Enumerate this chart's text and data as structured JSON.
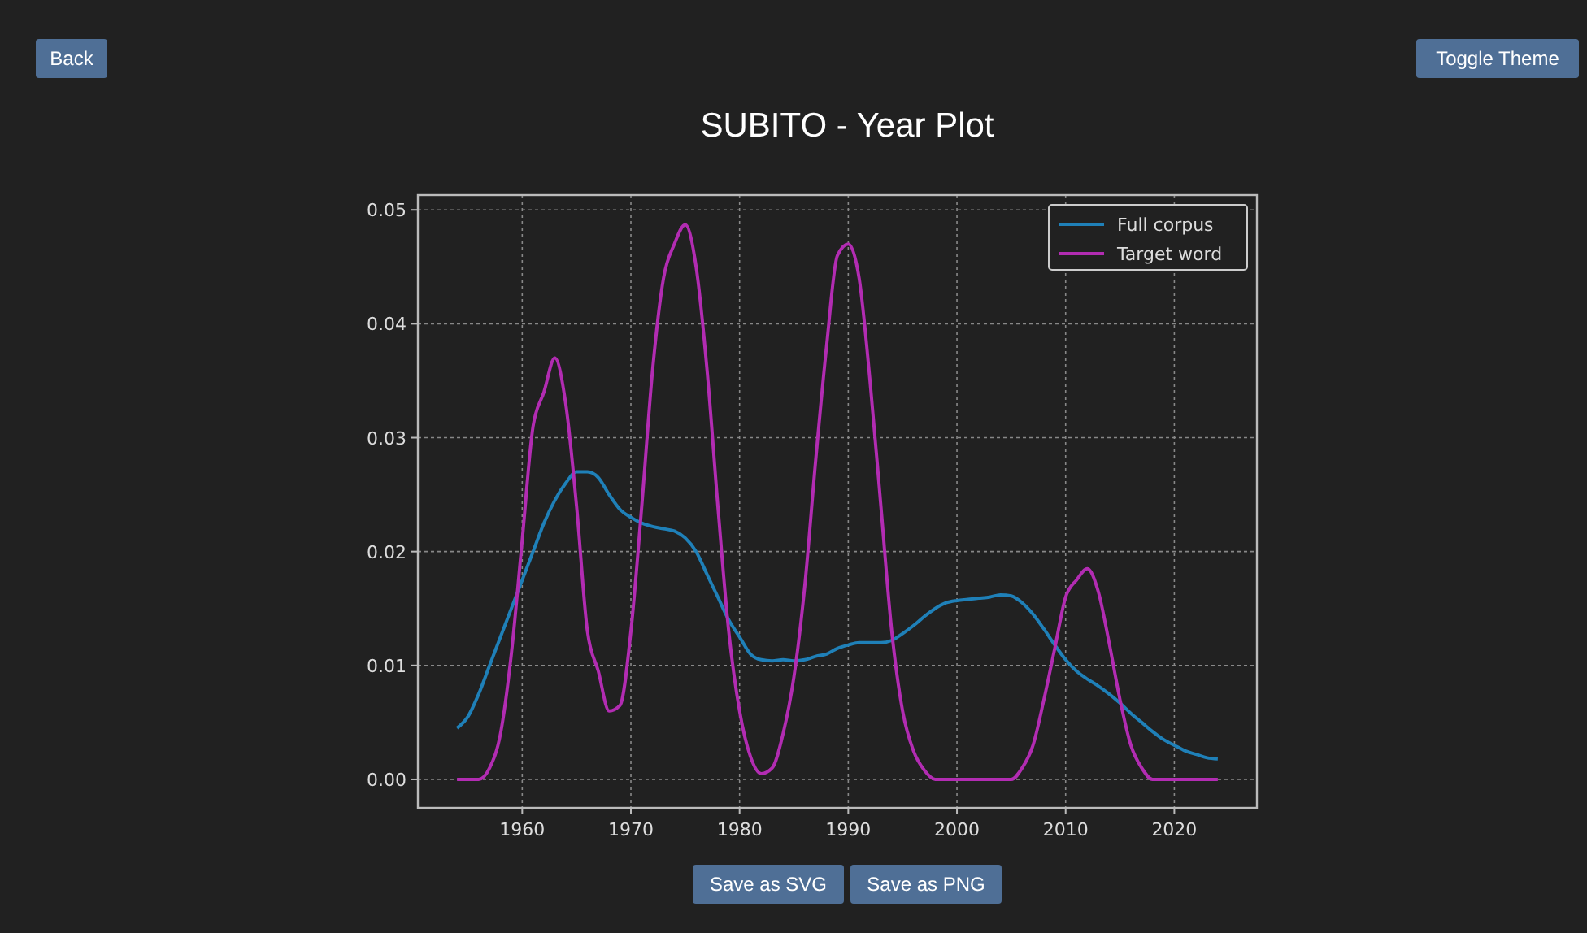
{
  "chart_data": {
    "type": "line",
    "title": "SUBITO - Year Plot",
    "annotations": [
      "Back",
      "Toggle Theme",
      "Save as SVG",
      "Save as PNG"
    ],
    "x": [
      1954,
      1955,
      1956,
      1957,
      1958,
      1959,
      1960,
      1961,
      1962,
      1963,
      1964,
      1965,
      1966,
      1967,
      1968,
      1969,
      1970,
      1971,
      1972,
      1973,
      1974,
      1975,
      1976,
      1977,
      1978,
      1979,
      1980,
      1981,
      1982,
      1983,
      1984,
      1985,
      1986,
      1987,
      1988,
      1989,
      1990,
      1991,
      1992,
      1993,
      1994,
      1995,
      1996,
      1997,
      1998,
      1999,
      2000,
      2001,
      2002,
      2003,
      2004,
      2005,
      2006,
      2007,
      2008,
      2009,
      2010,
      2011,
      2012,
      2013,
      2014,
      2015,
      2016,
      2017,
      2018,
      2019,
      2020,
      2021,
      2022,
      2023,
      2024
    ],
    "series": [
      {
        "name": "Full corpus",
        "color": "#1f80b8",
        "values": [
          0.0045,
          0.0055,
          0.0075,
          0.01,
          0.0125,
          0.015,
          0.0175,
          0.02,
          0.0225,
          0.0245,
          0.026,
          0.027,
          0.027,
          0.0265,
          0.025,
          0.0237,
          0.023,
          0.0225,
          0.0222,
          0.022,
          0.0218,
          0.0212,
          0.02,
          0.018,
          0.016,
          0.014,
          0.0125,
          0.011,
          0.0105,
          0.0104,
          0.0105,
          0.0104,
          0.0105,
          0.0108,
          0.011,
          0.0115,
          0.0118,
          0.012,
          0.012,
          0.012,
          0.0122,
          0.0128,
          0.0135,
          0.0143,
          0.015,
          0.0155,
          0.0157,
          0.0158,
          0.0159,
          0.016,
          0.0162,
          0.0161,
          0.0155,
          0.0145,
          0.0132,
          0.0118,
          0.0105,
          0.0095,
          0.0088,
          0.0082,
          0.0075,
          0.0067,
          0.0058,
          0.005,
          0.0042,
          0.0035,
          0.003,
          0.0025,
          0.0022,
          0.0019,
          0.0018
        ]
      },
      {
        "name": "Target word",
        "color": "#b22cb2",
        "values": [
          0,
          0,
          0,
          0.001,
          0.004,
          0.011,
          0.021,
          0.031,
          0.034,
          0.037,
          0.033,
          0.024,
          0.013,
          0.0095,
          0.006,
          0.0065,
          0.013,
          0.024,
          0.036,
          0.044,
          0.047,
          0.0487,
          0.045,
          0.036,
          0.024,
          0.013,
          0.006,
          0.002,
          0.0005,
          0.001,
          0.004,
          0.009,
          0.017,
          0.028,
          0.038,
          0.046,
          0.047,
          0.044,
          0.035,
          0.024,
          0.013,
          0.006,
          0.0025,
          0.0008,
          0,
          0,
          0,
          0,
          0,
          0,
          0,
          0,
          0.001,
          0.003,
          0.007,
          0.0115,
          0.016,
          0.0175,
          0.0185,
          0.0165,
          0.012,
          0.007,
          0.003,
          0.001,
          0,
          0,
          0,
          0,
          0,
          0,
          0
        ]
      }
    ],
    "xlim": [
      1950.4,
      2027.6
    ],
    "xticks": [
      1960,
      1970,
      1980,
      1990,
      2000,
      2010,
      2020
    ],
    "ylim": [
      -0.0025,
      0.0513
    ],
    "yticks": [
      {
        "value": 0,
        "label": "0.00"
      },
      {
        "value": 0.01,
        "label": "0.01"
      },
      {
        "value": 0.02,
        "label": "0.02"
      },
      {
        "value": 0.03,
        "label": "0.03"
      },
      {
        "value": 0.04,
        "label": "0.04"
      },
      {
        "value": 0.05,
        "label": "0.05"
      }
    ],
    "grid": true,
    "legend": "top right",
    "line_style": "solid",
    "marker": "none"
  }
}
